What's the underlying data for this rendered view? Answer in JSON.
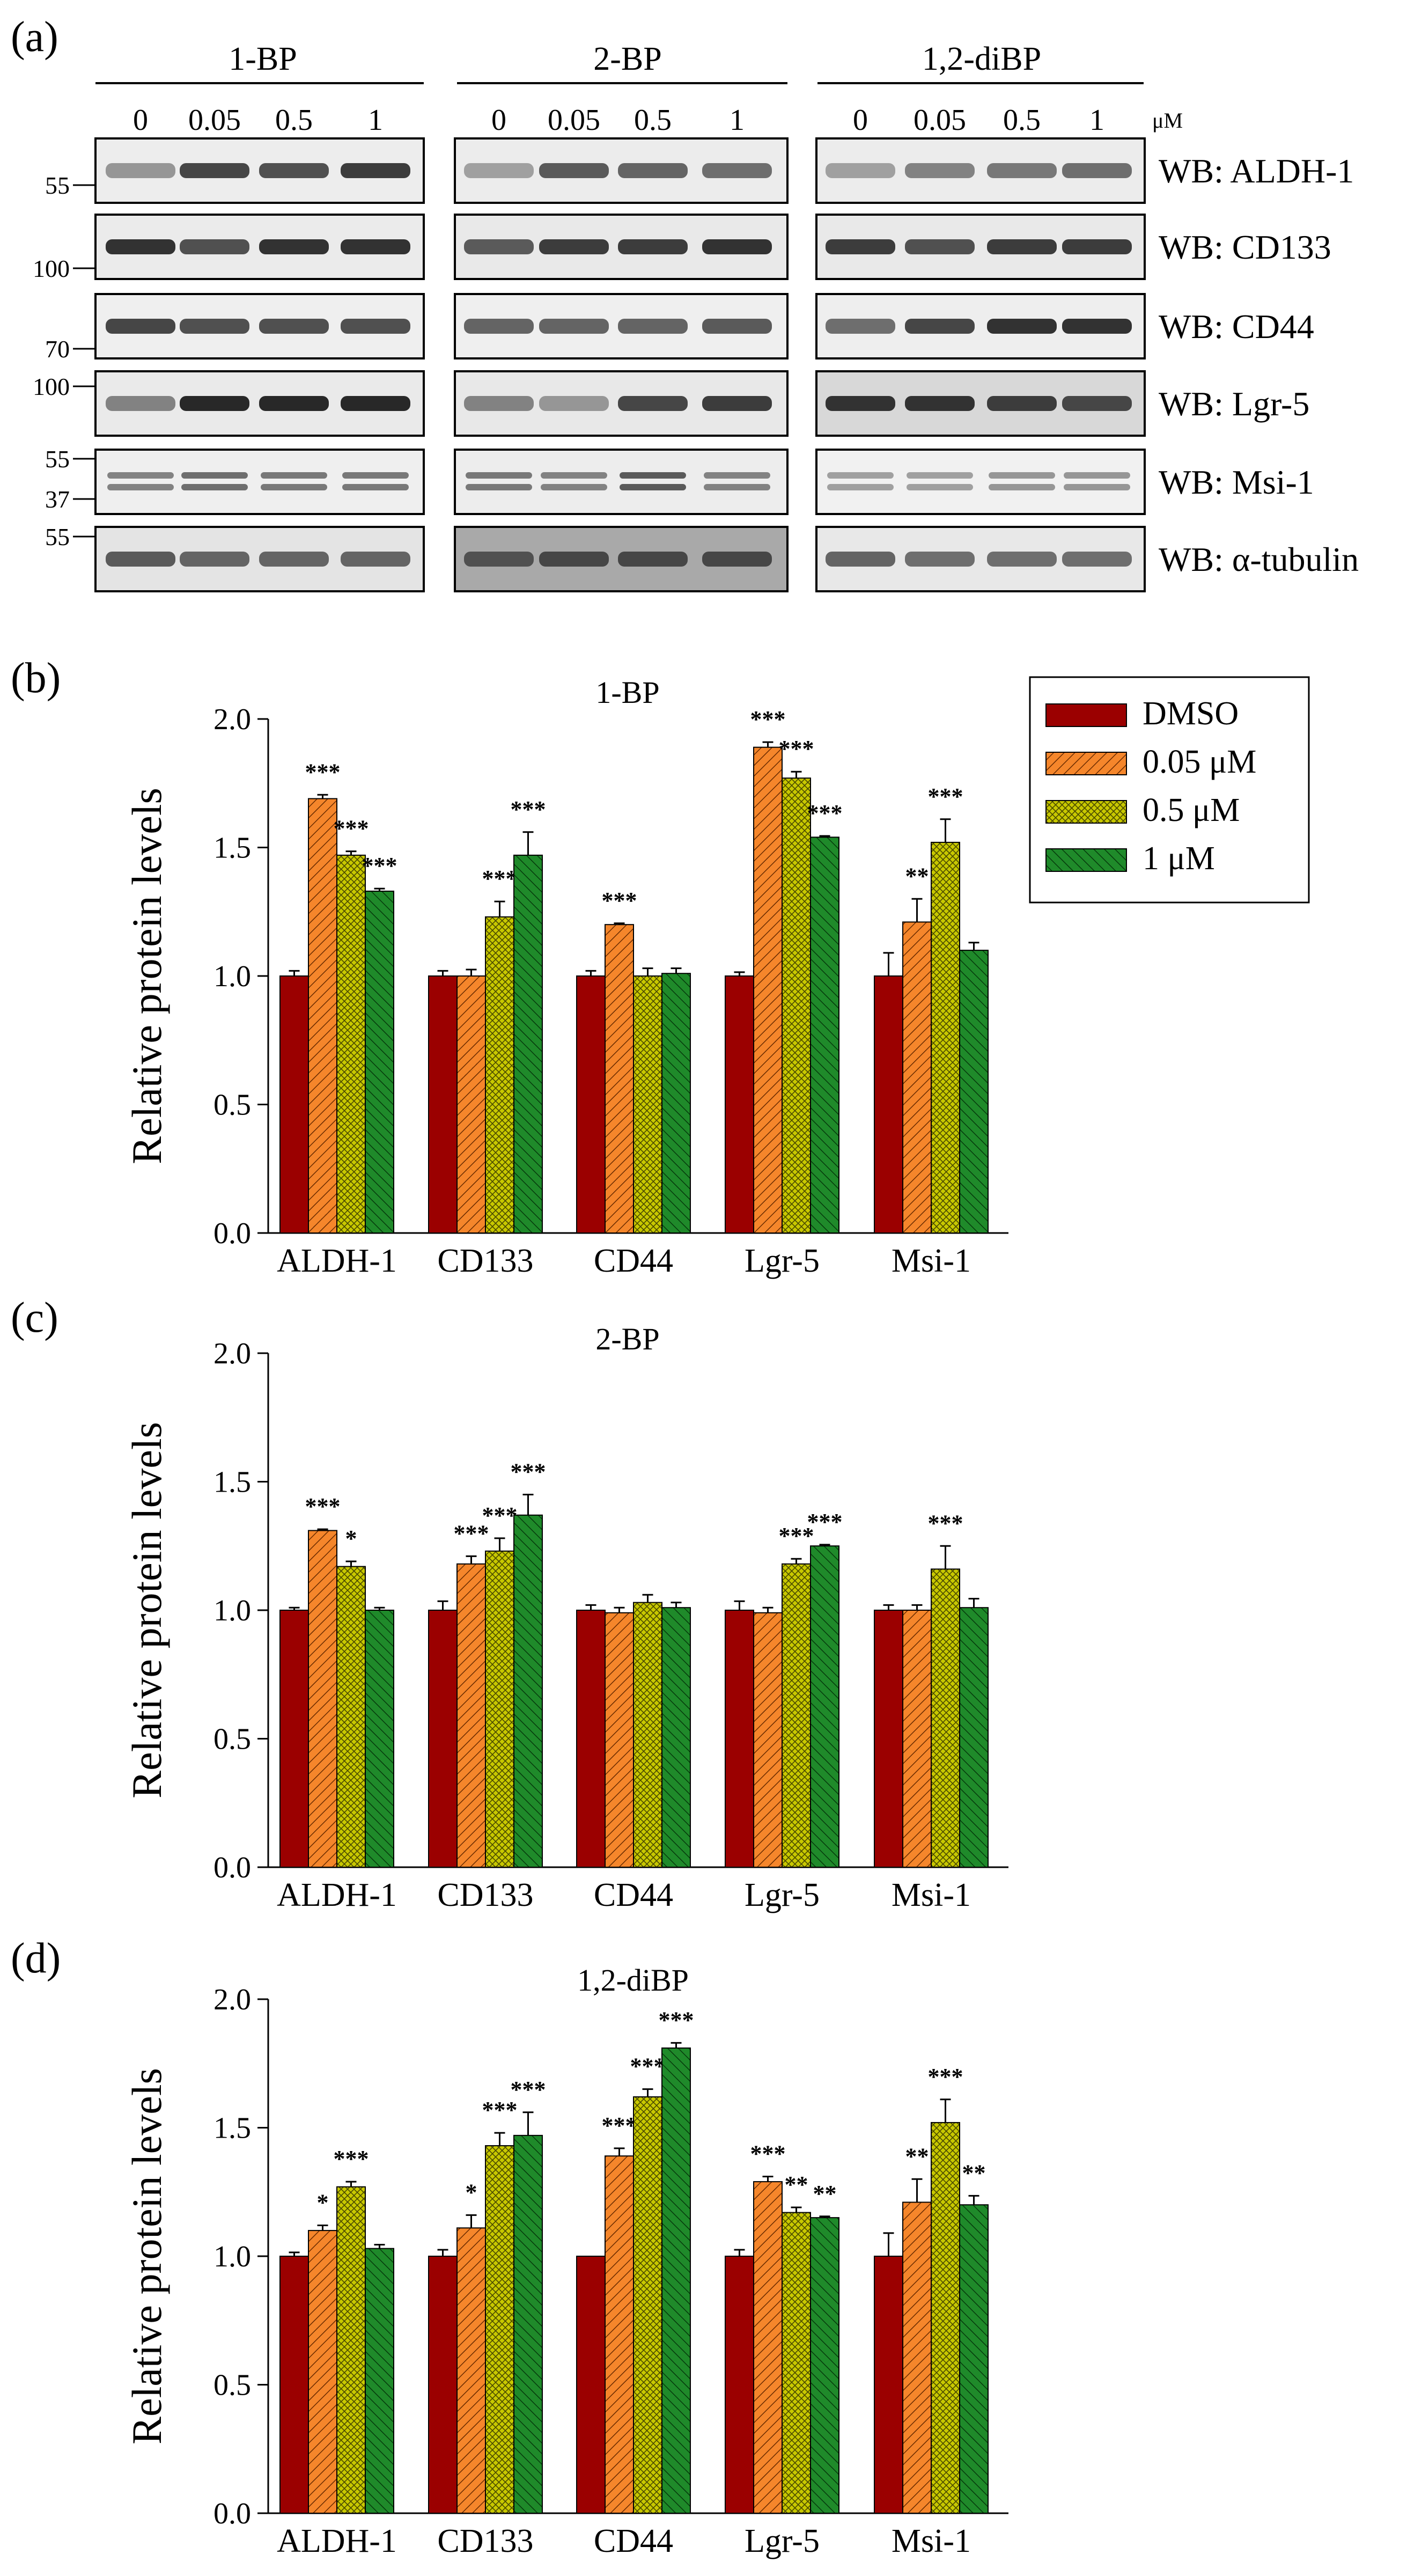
{
  "blot": {
    "panel_label": "(a)",
    "groups": [
      {
        "title": "1-BP",
        "concentrations": [
          "0",
          "0.05",
          "0.5",
          "1"
        ]
      },
      {
        "title": "2-BP",
        "concentrations": [
          "0",
          "0.05",
          "0.5",
          "1"
        ]
      },
      {
        "title": "1,2-diBP",
        "concentrations": [
          "0",
          "0.05",
          "0.5",
          "1"
        ]
      }
    ],
    "unit": "μM",
    "rows": [
      {
        "label": "WB: ALDH-1",
        "markers": [
          "55"
        ]
      },
      {
        "label": "WB: CD133",
        "markers": [
          "100"
        ]
      },
      {
        "label": "WB: CD44",
        "markers": [
          "70"
        ]
      },
      {
        "label": "WB: Lgr-5",
        "markers": [
          "100"
        ]
      },
      {
        "label": "WB: Msi-1",
        "markers": [
          "55",
          "37"
        ]
      },
      {
        "label": "WB: α-tubulin",
        "markers": [
          "55"
        ]
      }
    ]
  },
  "legend": {
    "items": [
      "DMSO",
      "0.05 μM",
      "0.5 μM",
      "1 μM"
    ]
  },
  "colors": {
    "dmso": "#9b0000",
    "c005": "#f5862b",
    "c05": "#c8c800",
    "c1": "#1f8a2a"
  },
  "chart_data": [
    {
      "type": "bar",
      "panel_label": "(b)",
      "title": "1-BP",
      "ylabel": "Relative protein levels",
      "xlabel": "",
      "ylim": [
        0,
        2.0
      ],
      "yticks": [
        "0.0",
        "0.5",
        "1.0",
        "1.5",
        "2.0"
      ],
      "categories": [
        "ALDH-1",
        "CD133",
        "CD44",
        "Lgr-5",
        "Msi-1"
      ],
      "series": [
        {
          "name": "DMSO",
          "values": [
            1.0,
            1.0,
            1.0,
            1.0,
            1.0
          ],
          "errors": [
            0.02,
            0.02,
            0.02,
            0.015,
            0.09
          ],
          "sig": [
            "",
            "",
            "",
            "",
            ""
          ]
        },
        {
          "name": "0.05 μM",
          "values": [
            1.69,
            1.0,
            1.2,
            1.89,
            1.21
          ],
          "errors": [
            0.015,
            0.025,
            0.005,
            0.02,
            0.09
          ],
          "sig": [
            "***",
            "",
            "***",
            "***",
            "**"
          ]
        },
        {
          "name": "0.5 μM",
          "values": [
            1.47,
            1.23,
            1.0,
            1.77,
            1.52
          ],
          "errors": [
            0.015,
            0.06,
            0.03,
            0.025,
            0.09
          ],
          "sig": [
            "***",
            "***",
            "",
            "***",
            "***"
          ]
        },
        {
          "name": "1 μM",
          "values": [
            1.33,
            1.47,
            1.01,
            1.54,
            1.1
          ],
          "errors": [
            0.01,
            0.09,
            0.02,
            0.005,
            0.03
          ],
          "sig": [
            "***",
            "***",
            "",
            "***",
            ""
          ]
        }
      ]
    },
    {
      "type": "bar",
      "panel_label": "(c)",
      "title": "2-BP",
      "ylabel": "Relative protein levels",
      "xlabel": "",
      "ylim": [
        0,
        2.0
      ],
      "yticks": [
        "0.0",
        "0.5",
        "1.0",
        "1.5",
        "2.0"
      ],
      "categories": [
        "ALDH-1",
        "CD133",
        "CD44",
        "Lgr-5",
        "Msi-1"
      ],
      "series": [
        {
          "name": "DMSO",
          "values": [
            1.0,
            1.0,
            1.0,
            1.0,
            1.0
          ],
          "errors": [
            0.01,
            0.035,
            0.02,
            0.035,
            0.02
          ],
          "sig": [
            "",
            "",
            "",
            "",
            ""
          ]
        },
        {
          "name": "0.05 μM",
          "values": [
            1.31,
            1.18,
            0.99,
            0.99,
            1.0
          ],
          "errors": [
            0.005,
            0.03,
            0.02,
            0.02,
            0.02
          ],
          "sig": [
            "***",
            "***",
            "",
            "",
            ""
          ]
        },
        {
          "name": "0.5 μM",
          "values": [
            1.17,
            1.23,
            1.03,
            1.18,
            1.16
          ],
          "errors": [
            0.02,
            0.05,
            0.03,
            0.02,
            0.09
          ],
          "sig": [
            "*",
            "***",
            "",
            "***",
            "***"
          ]
        },
        {
          "name": "1 μM",
          "values": [
            1.0,
            1.37,
            1.01,
            1.25,
            1.01
          ],
          "errors": [
            0.01,
            0.08,
            0.02,
            0.005,
            0.035
          ],
          "sig": [
            "",
            "***",
            "",
            "***",
            ""
          ]
        }
      ]
    },
    {
      "type": "bar",
      "panel_label": "(d)",
      "title": "1,2-diBP",
      "ylabel": "Relative protein levels",
      "xlabel": "",
      "ylim": [
        0,
        2.0
      ],
      "yticks": [
        "0.0",
        "0.5",
        "1.0",
        "1.5",
        "2.0"
      ],
      "categories": [
        "ALDH-1",
        "CD133",
        "CD44",
        "Lgr-5",
        "Msi-1"
      ],
      "series": [
        {
          "name": "DMSO",
          "values": [
            1.0,
            1.0,
            1.0,
            1.0,
            1.0
          ],
          "errors": [
            0.015,
            0.025,
            0.0,
            0.025,
            0.09
          ],
          "sig": [
            "",
            "",
            "",
            "",
            ""
          ]
        },
        {
          "name": "0.05 μM",
          "values": [
            1.1,
            1.11,
            1.39,
            1.29,
            1.21
          ],
          "errors": [
            0.02,
            0.05,
            0.03,
            0.02,
            0.09
          ],
          "sig": [
            "*",
            "*",
            "***",
            "***",
            "**"
          ]
        },
        {
          "name": "0.5 μM",
          "values": [
            1.27,
            1.43,
            1.62,
            1.17,
            1.52
          ],
          "errors": [
            0.02,
            0.05,
            0.03,
            0.02,
            0.09
          ],
          "sig": [
            "***",
            "***",
            "***",
            "**",
            "***"
          ]
        },
        {
          "name": "1 μM",
          "values": [
            1.03,
            1.47,
            1.81,
            1.15,
            1.2
          ],
          "errors": [
            0.015,
            0.09,
            0.02,
            0.005,
            0.035
          ],
          "sig": [
            "",
            "***",
            "***",
            "**",
            "**"
          ]
        }
      ]
    }
  ]
}
